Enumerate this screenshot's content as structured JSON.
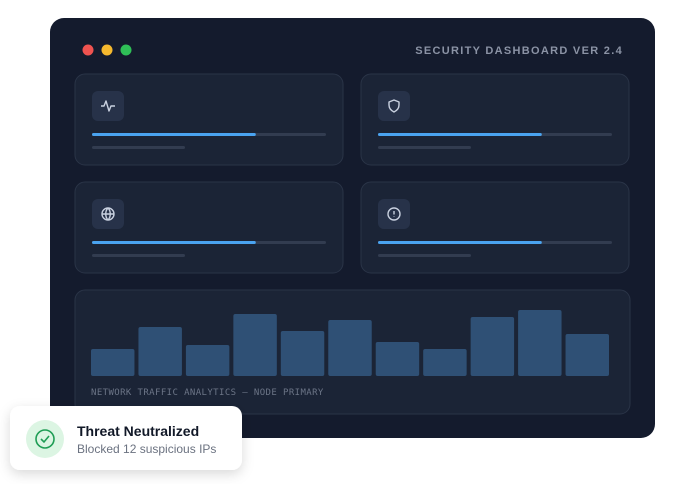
{
  "header": {
    "title": "SECURITY DASHBOARD VER 2.4"
  },
  "cards": [
    {
      "progress": 70
    },
    {
      "progress": 70
    },
    {
      "progress": 70
    },
    {
      "progress": 70
    }
  ],
  "traffic": {
    "label": "NETWORK TRAFFIC ANALYTICS — NODE PRIMARY",
    "values": [
      27,
      49,
      31,
      62,
      45,
      56,
      34,
      27,
      59,
      66,
      42
    ]
  },
  "toast": {
    "title": "Threat Neutralized",
    "message": "Blocked 12 suspicious IPs"
  }
}
